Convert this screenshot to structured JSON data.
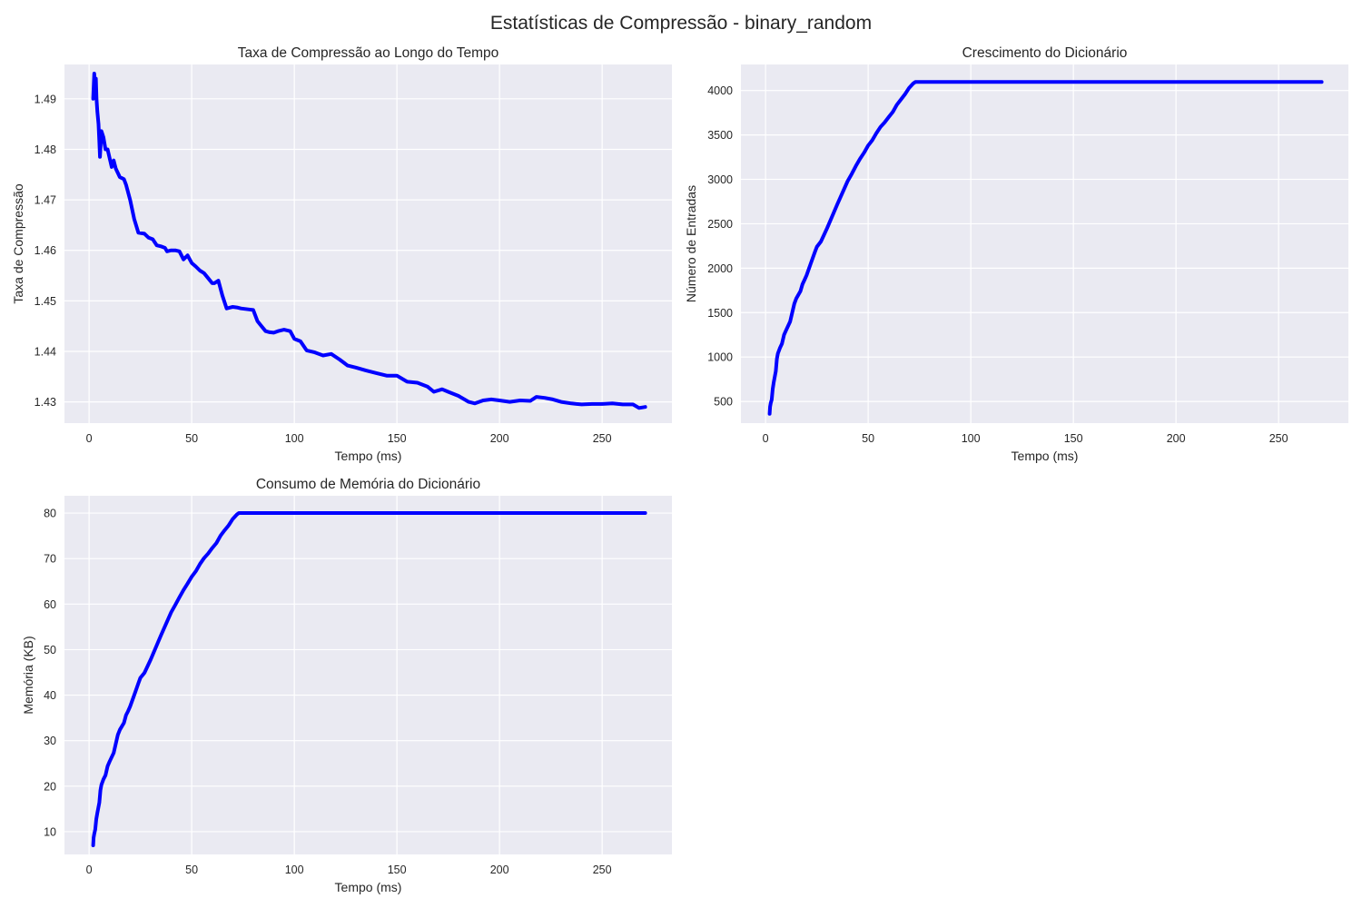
{
  "title": "Estatísticas de Compressão - binary_random",
  "chart_data": [
    {
      "type": "line",
      "title": "Taxa de Compressão ao Longo do Tempo",
      "xlabel": "Tempo (ms)",
      "ylabel": "Taxa de Compressão",
      "xlim": [
        -12,
        284
      ],
      "ylim": [
        1.4258,
        1.4968
      ],
      "xticks": [
        0,
        50,
        100,
        150,
        200,
        250
      ],
      "yticks": [
        1.43,
        1.44,
        1.45,
        1.46,
        1.47,
        1.48,
        1.49
      ],
      "ytick_labels": [
        "1.43",
        "1.44",
        "1.45",
        "1.46",
        "1.47",
        "1.48",
        "1.49"
      ],
      "grid": true,
      "color": "#0000ff",
      "x": [
        2,
        2.5,
        3,
        3.3,
        3.6,
        4,
        4.6,
        5,
        5.3,
        6,
        7,
        8,
        9,
        11,
        12,
        13,
        15,
        17,
        18,
        20,
        22,
        24,
        27,
        29,
        31,
        33,
        35,
        37,
        38,
        40,
        42,
        44,
        46,
        48,
        50,
        52,
        54,
        56,
        58,
        60,
        61,
        63,
        65,
        67,
        70,
        72,
        74,
        78,
        80,
        82,
        84,
        86,
        88,
        90,
        92,
        95,
        98,
        100,
        103,
        106,
        110,
        114,
        118,
        122,
        126,
        130,
        135,
        140,
        145,
        150,
        155,
        160,
        165,
        168,
        172,
        175,
        180,
        185,
        188,
        192,
        196,
        200,
        205,
        210,
        215,
        218,
        222,
        226,
        230,
        235,
        240,
        245,
        250,
        255,
        260,
        265,
        268,
        271
      ],
      "y": [
        1.49,
        1.495,
        1.4925,
        1.494,
        1.49,
        1.4875,
        1.485,
        1.4815,
        1.4785,
        1.4836,
        1.4824,
        1.48,
        1.48,
        1.4765,
        1.4778,
        1.4762,
        1.4745,
        1.4741,
        1.473,
        1.47,
        1.4662,
        1.4635,
        1.4633,
        1.4625,
        1.4622,
        1.461,
        1.4608,
        1.4605,
        1.4598,
        1.46,
        1.46,
        1.4598,
        1.4582,
        1.459,
        1.4575,
        1.4568,
        1.456,
        1.4555,
        1.4545,
        1.4535,
        1.4535,
        1.454,
        1.451,
        1.4485,
        1.4488,
        1.4487,
        1.4485,
        1.4483,
        1.4482,
        1.446,
        1.445,
        1.444,
        1.4438,
        1.4437,
        1.444,
        1.4443,
        1.444,
        1.4425,
        1.442,
        1.4402,
        1.4398,
        1.4392,
        1.4395,
        1.4384,
        1.4372,
        1.4368,
        1.4362,
        1.4357,
        1.4352,
        1.4352,
        1.434,
        1.4338,
        1.433,
        1.432,
        1.4325,
        1.432,
        1.4312,
        1.43,
        1.4297,
        1.4303,
        1.4305,
        1.4303,
        1.43,
        1.4303,
        1.4302,
        1.431,
        1.4308,
        1.4305,
        1.43,
        1.4297,
        1.4295,
        1.4296,
        1.4296,
        1.4297,
        1.4295,
        1.4295,
        1.4288,
        1.429
      ]
    },
    {
      "type": "line",
      "title": "Crescimento do Dicionário",
      "xlabel": "Tempo (ms)",
      "ylabel": "Número de Entradas",
      "xlim": [
        -12,
        284
      ],
      "ylim": [
        256,
        4293
      ],
      "xticks": [
        0,
        50,
        100,
        150,
        200,
        250
      ],
      "yticks": [
        500,
        1000,
        1500,
        2000,
        2500,
        3000,
        3500,
        4000
      ],
      "ytick_labels": [
        "500",
        "1000",
        "1500",
        "2000",
        "2500",
        "3000",
        "3500",
        "4000"
      ],
      "grid": true,
      "color": "#0000ff",
      "x": [
        2,
        2.2,
        2.5,
        3,
        3.5,
        4,
        5,
        5.5,
        6,
        7,
        8,
        9,
        10,
        12,
        14,
        15,
        17,
        18,
        19,
        20,
        22,
        24,
        25,
        27,
        30,
        35,
        40,
        42,
        44,
        46,
        48,
        50,
        52,
        54,
        56,
        58,
        60,
        62,
        64,
        66,
        68,
        70,
        72,
        73,
        80,
        100,
        150,
        200,
        250,
        271
      ],
      "y": [
        360,
        440,
        480,
        520,
        640,
        720,
        840,
        980,
        1040,
        1100,
        1150,
        1250,
        1300,
        1400,
        1600,
        1660,
        1740,
        1820,
        1870,
        1920,
        2050,
        2180,
        2240,
        2300,
        2450,
        2720,
        2980,
        3060,
        3150,
        3230,
        3300,
        3380,
        3440,
        3520,
        3590,
        3640,
        3700,
        3760,
        3840,
        3900,
        3960,
        4030,
        4080,
        4096,
        4096,
        4096,
        4096,
        4096,
        4096,
        4096
      ]
    },
    {
      "type": "line",
      "title": "Consumo de Memória do Dicionário",
      "xlabel": "Tempo (ms)",
      "ylabel": "Memória (KB)",
      "xlim": [
        -12,
        284
      ],
      "ylim": [
        5.0,
        83.8
      ],
      "xticks": [
        0,
        50,
        100,
        150,
        200,
        250
      ],
      "yticks": [
        10,
        20,
        30,
        40,
        50,
        60,
        70,
        80
      ],
      "ytick_labels": [
        "10",
        "20",
        "30",
        "40",
        "50",
        "60",
        "70",
        "80"
      ],
      "grid": true,
      "color": "#0000ff",
      "x": [
        2,
        2.2,
        2.5,
        3,
        3.5,
        4,
        5,
        5.5,
        6,
        7,
        8,
        9,
        10,
        12,
        14,
        15,
        17,
        18,
        19,
        20,
        22,
        24,
        25,
        27,
        30,
        35,
        40,
        42,
        44,
        46,
        48,
        50,
        52,
        54,
        56,
        58,
        60,
        62,
        64,
        66,
        68,
        70,
        72,
        73,
        80,
        100,
        150,
        200,
        250,
        271
      ],
      "y": [
        7,
        8.7,
        9.5,
        10.5,
        12.7,
        14.1,
        16.4,
        19.1,
        20.3,
        21.5,
        22.4,
        24.4,
        25.4,
        27.3,
        31.3,
        32.4,
        33.9,
        35.6,
        36.5,
        37.5,
        40.0,
        42.6,
        43.8,
        44.9,
        47.8,
        53.1,
        58.2,
        59.8,
        61.5,
        63.1,
        64.5,
        66.0,
        67.2,
        68.8,
        70.1,
        71.1,
        72.3,
        73.4,
        75.0,
        76.2,
        77.3,
        78.7,
        79.7,
        80.0,
        80.0,
        80.0,
        80.0,
        80.0,
        80.0,
        80.0
      ]
    }
  ]
}
